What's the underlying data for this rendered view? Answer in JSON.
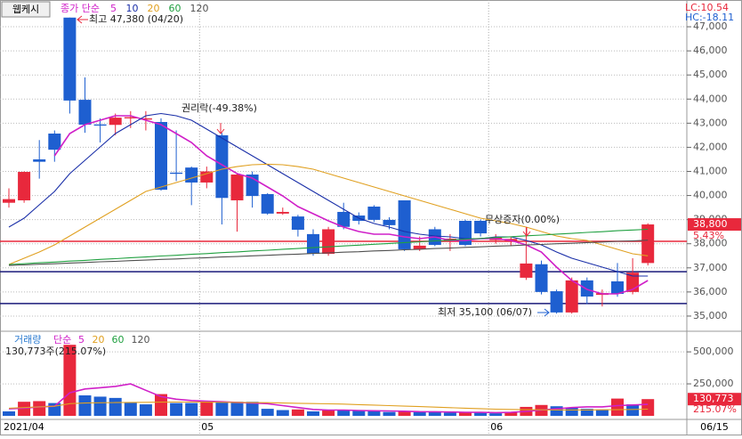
{
  "button": "웹케시",
  "chart_data": {
    "type": "candlestick",
    "categories": [
      "2021/04",
      null,
      null,
      null,
      null,
      null,
      null,
      null,
      null,
      null,
      null,
      null,
      null,
      "05",
      null,
      null,
      null,
      null,
      null,
      null,
      null,
      null,
      null,
      null,
      null,
      null,
      null,
      null,
      null,
      null,
      null,
      null,
      "06",
      null,
      null,
      null,
      null,
      null,
      null,
      null,
      null,
      null,
      null
    ],
    "date_end": "06/15",
    "open": [
      39700,
      39800,
      41500,
      42570,
      47380,
      43970,
      42950,
      42930,
      43200,
      43150,
      43050,
      40950,
      41160,
      40540,
      42500,
      39800,
      40870,
      40060,
      39250,
      39130,
      38400,
      37580,
      39320,
      39170,
      39540,
      38990,
      39800,
      37770,
      38600,
      38150,
      38950,
      38950,
      38150,
      38100,
      36590,
      37150,
      36030,
      35150,
      36480,
      35880,
      36440,
      36000,
      37200
    ],
    "high": [
      40300,
      41000,
      42300,
      42700,
      47380,
      44900,
      43200,
      43400,
      43500,
      43500,
      43200,
      42700,
      41200,
      41200,
      42600,
      40900,
      41000,
      40100,
      39500,
      39200,
      38600,
      38700,
      39700,
      39300,
      39600,
      39100,
      39800,
      38300,
      38700,
      38400,
      39000,
      39000,
      38400,
      38300,
      38700,
      37300,
      36100,
      36600,
      36600,
      36100,
      37200,
      37400,
      38850
    ],
    "low": [
      39500,
      39700,
      40700,
      41400,
      43400,
      42600,
      42200,
      42500,
      42800,
      42700,
      40200,
      40600,
      39600,
      40300,
      38800,
      38500,
      39500,
      39200,
      39200,
      38300,
      37500,
      37500,
      38600,
      38800,
      38900,
      38600,
      37700,
      37700,
      37900,
      37700,
      37900,
      38300,
      38000,
      37900,
      36500,
      35900,
      35100,
      35100,
      35500,
      35400,
      35800,
      35900,
      37100
    ],
    "close": [
      39850,
      40980,
      41400,
      41900,
      43940,
      42940,
      42900,
      43230,
      43250,
      43200,
      40240,
      40900,
      40540,
      41000,
      39900,
      40870,
      39980,
      39250,
      39320,
      38580,
      37580,
      38600,
      38700,
      38950,
      38990,
      38770,
      37770,
      37920,
      37950,
      38210,
      37950,
      38430,
      38250,
      38200,
      37180,
      36000,
      35150,
      36480,
      35810,
      35950,
      35920,
      36800,
      38800
    ],
    "up_color": "#e8283c",
    "down_color": "#1e5fd0",
    "ylim": [
      34370,
      48110
    ],
    "yticks": [
      {
        "value": 35000,
        "label": "35,000"
      },
      {
        "value": 36000,
        "label": "36,000"
      },
      {
        "value": 37000,
        "label": "37,000"
      },
      {
        "value": 38000,
        "label": "38,000"
      },
      {
        "value": 39000,
        "label": "39,000"
      },
      {
        "value": 40000,
        "label": "40,000"
      },
      {
        "value": 41000,
        "label": "41,000"
      },
      {
        "value": 42000,
        "label": "42,000"
      },
      {
        "value": 43000,
        "label": "43,000"
      },
      {
        "value": 44000,
        "label": "44,000"
      },
      {
        "value": 45000,
        "label": "45,000"
      },
      {
        "value": 46000,
        "label": "46,000"
      },
      {
        "value": 47000,
        "label": "47,000"
      }
    ],
    "grid": true,
    "legend_prefix": "종가 단순",
    "series": [
      {
        "name": "5",
        "color": "#d020c8",
        "values": [
          null,
          null,
          null,
          41645,
          42568,
          42938,
          43122,
          43307,
          43307,
          43122,
          42938,
          42568,
          42199,
          41645,
          41276,
          40907,
          40722,
          40353,
          39984,
          39540,
          39245,
          38949,
          38690,
          38506,
          38395,
          38395,
          38285,
          38211,
          38285,
          38137,
          38137,
          38211,
          38211,
          38137,
          37952,
          37657,
          37029,
          36475,
          36106,
          35921,
          35921,
          36106,
          36475
        ]
      },
      {
        "name": "10",
        "color": "#1a2fa8",
        "values": [
          38690,
          39061,
          39615,
          40168,
          40907,
          41461,
          42014,
          42568,
          42938,
          43307,
          43400,
          43307,
          43122,
          42753,
          42384,
          42014,
          41645,
          41276,
          40907,
          40537,
          40168,
          39799,
          39430,
          39061,
          38838,
          38690,
          38506,
          38395,
          38321,
          38285,
          38211,
          38211,
          38285,
          38285,
          38137,
          37952,
          37657,
          37398,
          37214,
          37029,
          36844,
          36660,
          36660
        ]
      },
      {
        "name": "20",
        "color": "#e0a020",
        "values": [
          37140,
          37398,
          37657,
          37952,
          38321,
          38690,
          39061,
          39430,
          39799,
          40168,
          40353,
          40537,
          40722,
          40907,
          41091,
          41200,
          41276,
          41300,
          41276,
          41200,
          41091,
          40907,
          40722,
          40537,
          40353,
          40168,
          39984,
          39799,
          39615,
          39430,
          39245,
          39061,
          38949,
          38838,
          38690,
          38506,
          38321,
          38211,
          38137,
          37952,
          37767,
          37584,
          37500
        ]
      },
      {
        "name": "60",
        "color": "#20a040",
        "values": [
          37140,
          37170,
          37210,
          37240,
          37280,
          37310,
          37350,
          37380,
          37420,
          37450,
          37490,
          37520,
          37560,
          37590,
          37630,
          37660,
          37700,
          37730,
          37770,
          37800,
          37840,
          37870,
          37910,
          37940,
          37980,
          38010,
          38050,
          38080,
          38120,
          38150,
          38190,
          38220,
          38260,
          38290,
          38330,
          38360,
          38400,
          38430,
          38470,
          38500,
          38540,
          38570,
          38600
        ]
      },
      {
        "name": "120",
        "color": "#505050",
        "values": [
          37100,
          37120,
          37150,
          37170,
          37200,
          37220,
          37250,
          37270,
          37300,
          37320,
          37350,
          37370,
          37400,
          37420,
          37450,
          37470,
          37500,
          37520,
          37550,
          37570,
          37600,
          37620,
          37650,
          37670,
          37700,
          37720,
          37750,
          37770,
          37800,
          37820,
          37850,
          37870,
          37900,
          37920,
          37950,
          37970,
          38000,
          38020,
          38050,
          38070,
          38100,
          38120,
          38150
        ]
      }
    ],
    "hlines": [
      {
        "value": 38100,
        "color": "#e8283c"
      },
      {
        "value": 36840,
        "color": "#1a1a7a"
      },
      {
        "value": 35520,
        "color": "#1a1a7a"
      }
    ],
    "annotations": {
      "high": "최고 47,380 (04/20)",
      "rights": "권리락(-49.38%)",
      "bonus": "무상증자(0.00%)",
      "low": "최저 35,100 (06/07)"
    },
    "lc": "LC:10.54",
    "hc": "HC:-18.11",
    "price_marker": {
      "value": 38800,
      "label": "38,800",
      "change": "5.43%"
    },
    "volume": {
      "title": "거래량",
      "legend_prefix": "단순",
      "values": [
        35000,
        110000,
        115000,
        100000,
        555000,
        160000,
        150000,
        140000,
        105000,
        90000,
        170000,
        100000,
        100000,
        115000,
        110000,
        110000,
        110000,
        55000,
        45000,
        50000,
        35000,
        45000,
        45000,
        40000,
        35000,
        30000,
        35000,
        30000,
        30000,
        25000,
        30000,
        25000,
        20000,
        30000,
        70000,
        85000,
        75000,
        65000,
        55000,
        50000,
        135000,
        90000,
        130773
      ],
      "ylim": [
        0,
        640000
      ],
      "yticks": [
        {
          "value": 250000,
          "label": "250,000"
        },
        {
          "value": 500000,
          "label": "500,000"
        }
      ],
      "series": [
        {
          "name": "5",
          "color": "#d020c8",
          "values": [
            55000,
            60000,
            70000,
            75000,
            180000,
            210000,
            220000,
            230000,
            250000,
            200000,
            150000,
            130000,
            120000,
            115000,
            110000,
            105000,
            100000,
            95000,
            80000,
            65000,
            50000,
            45000,
            45000,
            42000,
            40000,
            38000,
            36000,
            33000,
            32000,
            30000,
            28000,
            27000,
            25000,
            27000,
            35000,
            45000,
            55000,
            65000,
            70000,
            70000,
            80000,
            85000,
            90000
          ]
        },
        {
          "name": "20",
          "color": "#e0a020",
          "values": [
            60000,
            65000,
            70000,
            75000,
            95000,
            100000,
            102000,
            104000,
            105000,
            106000,
            107000,
            108000,
            108000,
            107000,
            106000,
            105000,
            104000,
            103000,
            100000,
            98000,
            96000,
            94000,
            92000,
            88000,
            84000,
            80000,
            76000,
            72000,
            68000,
            64000,
            60000,
            56000,
            52000,
            50000,
            48000,
            47000,
            46000,
            46000,
            46000,
            47000,
            48000,
            50000,
            52000
          ]
        }
      ],
      "extra_legend": [
        {
          "name": "60",
          "color": "#20a040"
        },
        {
          "name": "120",
          "color": "#505050"
        }
      ],
      "info": "130,773주(215.07%)",
      "marker": {
        "value": 130773,
        "label": "130,773",
        "ratio": "215.07%"
      }
    }
  }
}
